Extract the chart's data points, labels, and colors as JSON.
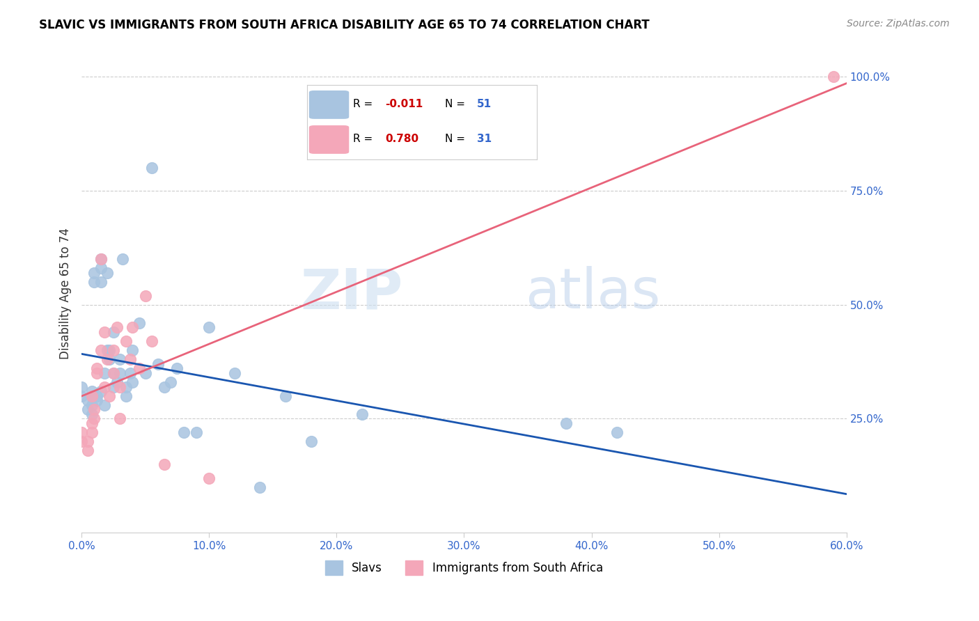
{
  "title": "SLAVIC VS IMMIGRANTS FROM SOUTH AFRICA DISABILITY AGE 65 TO 74 CORRELATION CHART",
  "source": "Source: ZipAtlas.com",
  "xlabel_values": [
    0.0,
    0.1,
    0.2,
    0.3,
    0.4,
    0.5,
    0.6
  ],
  "ylabel": "Disability Age 65 to 74",
  "xlim": [
    0.0,
    0.6
  ],
  "ylim": [
    0.0,
    1.05
  ],
  "legend_r_slavs": "-0.011",
  "legend_n_slavs": "51",
  "legend_r_immigrants": "0.780",
  "legend_n_immigrants": "31",
  "slavs_color": "#a8c4e0",
  "immigrants_color": "#f4a7b9",
  "slavs_line_color": "#1a56b0",
  "immigrants_line_color": "#e8637a",
  "watermark_zip": "ZIP",
  "watermark_atlas": "atlas",
  "slavs_x": [
    0.0,
    0.0,
    0.005,
    0.005,
    0.008,
    0.008,
    0.008,
    0.008,
    0.01,
    0.01,
    0.012,
    0.012,
    0.015,
    0.015,
    0.015,
    0.015,
    0.018,
    0.018,
    0.02,
    0.02,
    0.022,
    0.022,
    0.025,
    0.025,
    0.025,
    0.028,
    0.03,
    0.03,
    0.032,
    0.035,
    0.035,
    0.038,
    0.04,
    0.04,
    0.045,
    0.05,
    0.055,
    0.06,
    0.065,
    0.07,
    0.075,
    0.08,
    0.09,
    0.1,
    0.12,
    0.14,
    0.16,
    0.18,
    0.22,
    0.38,
    0.42
  ],
  "slavs_y": [
    0.3,
    0.32,
    0.27,
    0.29,
    0.3,
    0.31,
    0.26,
    0.28,
    0.55,
    0.57,
    0.29,
    0.3,
    0.31,
    0.55,
    0.58,
    0.6,
    0.35,
    0.28,
    0.57,
    0.4,
    0.38,
    0.4,
    0.32,
    0.35,
    0.44,
    0.33,
    0.35,
    0.38,
    0.6,
    0.3,
    0.32,
    0.35,
    0.33,
    0.4,
    0.46,
    0.35,
    0.8,
    0.37,
    0.32,
    0.33,
    0.36,
    0.22,
    0.22,
    0.45,
    0.35,
    0.1,
    0.3,
    0.2,
    0.26,
    0.24,
    0.22
  ],
  "immigrants_x": [
    0.0,
    0.0,
    0.005,
    0.005,
    0.008,
    0.008,
    0.008,
    0.01,
    0.01,
    0.012,
    0.012,
    0.015,
    0.015,
    0.018,
    0.018,
    0.02,
    0.022,
    0.025,
    0.025,
    0.028,
    0.03,
    0.03,
    0.035,
    0.038,
    0.04,
    0.045,
    0.05,
    0.055,
    0.065,
    0.1,
    0.59
  ],
  "immigrants_y": [
    0.2,
    0.22,
    0.18,
    0.2,
    0.22,
    0.24,
    0.3,
    0.25,
    0.27,
    0.35,
    0.36,
    0.4,
    0.6,
    0.44,
    0.32,
    0.38,
    0.3,
    0.35,
    0.4,
    0.45,
    0.25,
    0.32,
    0.42,
    0.38,
    0.45,
    0.36,
    0.52,
    0.42,
    0.15,
    0.12,
    1.0
  ]
}
